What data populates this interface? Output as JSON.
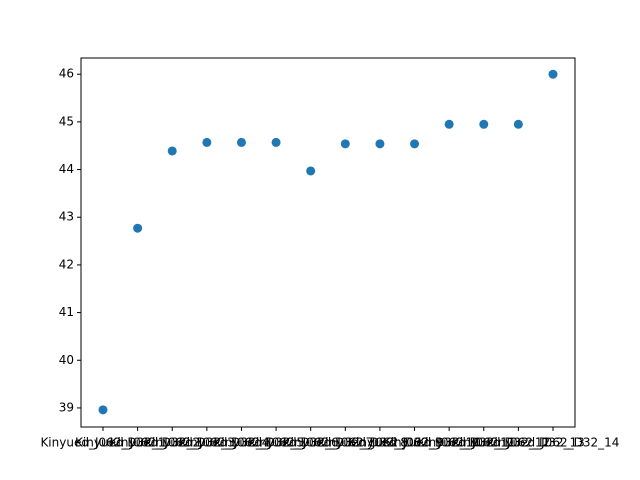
{
  "chart_data": {
    "type": "scatter",
    "categories": [
      "Kinyued_J062_D32_1",
      "Kinyued_J062_D32_2",
      "Kinyued_J062_D32_3",
      "Kinyued_J062_D32_4",
      "Kinyued_J062_D32_5",
      "Kinyued_J062_D32_6",
      "Kinyued_J062_D32_7",
      "Kinyued_J062_D32_8",
      "Kinyued_J062_D32_9",
      "Kinyued_J062_D32_10",
      "Kinyued_J062_D32_11",
      "Kinyued_J062_D32_12",
      "Kinyued_J062_D32_13",
      "Kinyued_J062_D32_14"
    ],
    "values": [
      38.96,
      42.77,
      44.39,
      44.57,
      44.57,
      44.57,
      43.97,
      44.54,
      44.54,
      44.54,
      44.95,
      44.95,
      44.95,
      46.0
    ],
    "color": "#1f77b4",
    "ylim": [
      38.6,
      46.34
    ],
    "yticks": [
      39,
      40,
      41,
      42,
      43,
      44,
      45,
      46
    ],
    "grid": false
  }
}
